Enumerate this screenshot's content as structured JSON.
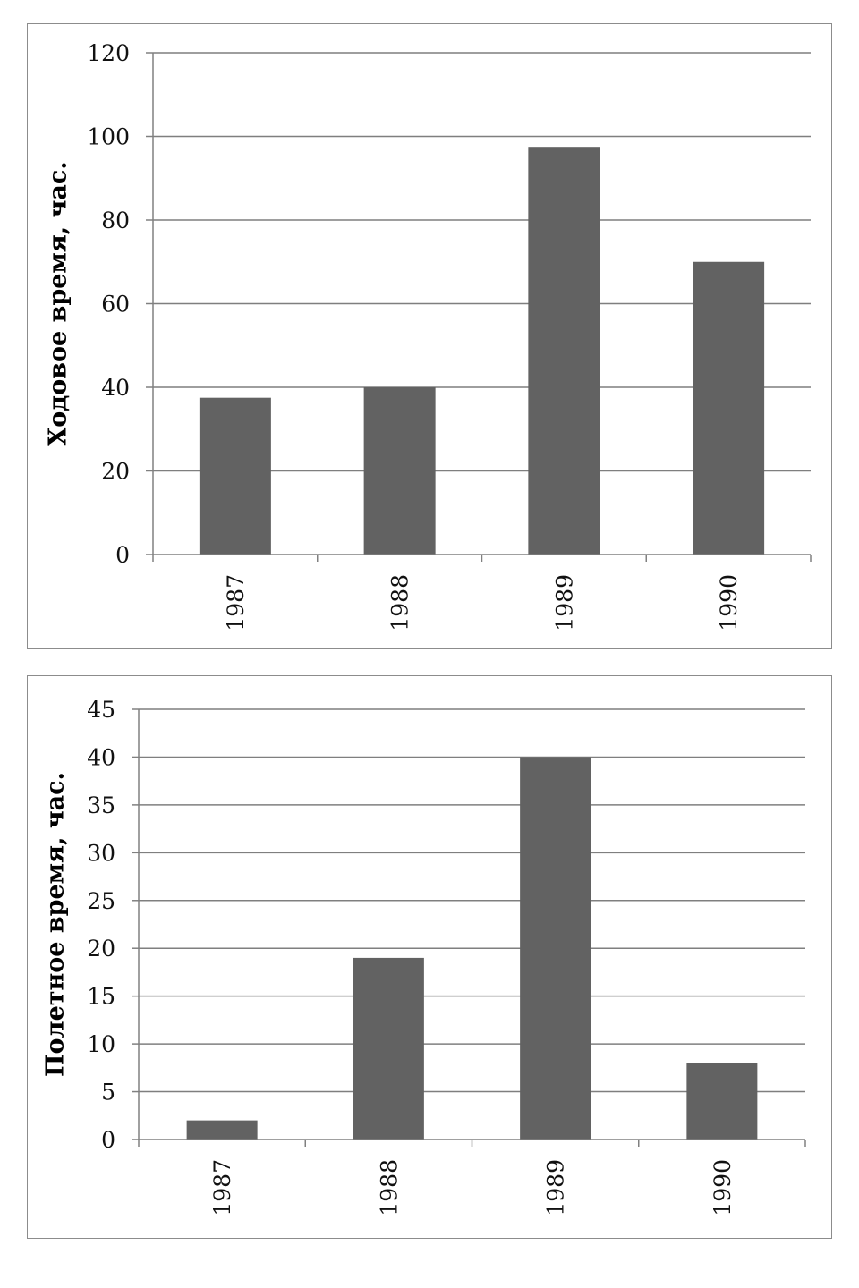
{
  "chart_data": [
    {
      "type": "bar",
      "categories": [
        "1987",
        "1988",
        "1989",
        "1990"
      ],
      "values": [
        37.5,
        40,
        97.5,
        70
      ],
      "title": "",
      "xlabel": "",
      "ylabel": "Ходовое время, час.",
      "ylim": [
        0,
        120
      ],
      "yticks": [
        0,
        20,
        40,
        60,
        80,
        100,
        120
      ],
      "grid": true,
      "bar_color": "#626262"
    },
    {
      "type": "bar",
      "categories": [
        "1987",
        "1988",
        "1989",
        "1990"
      ],
      "values": [
        2,
        19,
        40,
        8
      ],
      "title": "",
      "xlabel": "",
      "ylabel": "Полетное время, час.",
      "ylim": [
        0,
        45
      ],
      "yticks": [
        0,
        5,
        10,
        15,
        20,
        25,
        30,
        35,
        40,
        45
      ],
      "grid": true,
      "bar_color": "#626262"
    }
  ]
}
